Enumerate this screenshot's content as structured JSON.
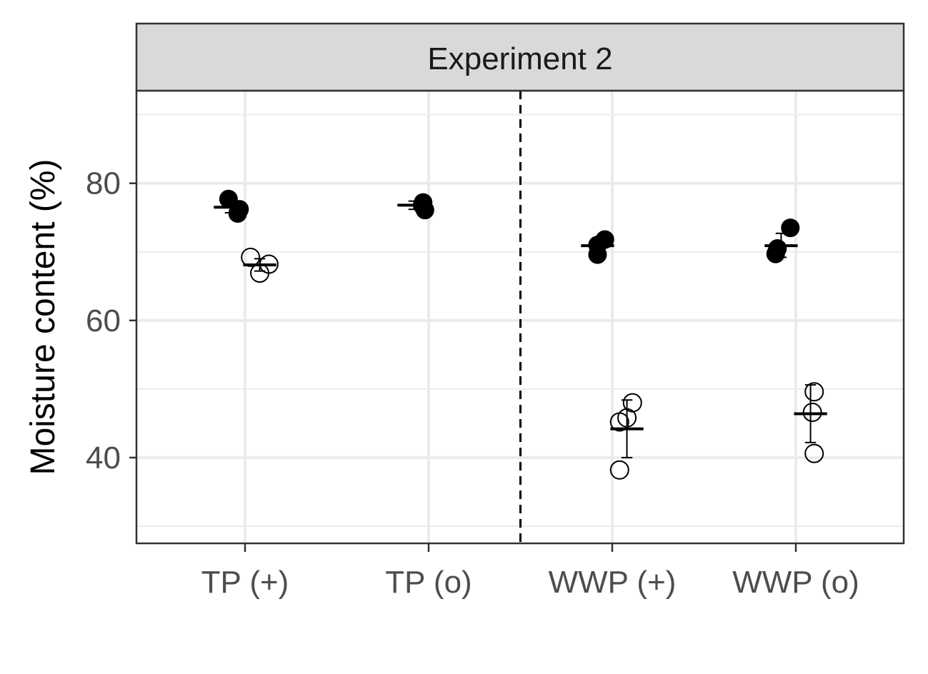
{
  "chart_data": {
    "type": "scatter",
    "facet_title": "Experiment 2",
    "xlabel": "",
    "ylabel": "Moisture content (%)",
    "categories": [
      "TP (+)",
      "TP (o)",
      "WWP (+)",
      "WWP (o)"
    ],
    "ylim": [
      27.5,
      93.5
    ],
    "yticks": [
      40,
      60,
      80
    ],
    "grid": true,
    "separator_after_category": "TP (o)",
    "series": [
      {
        "marker": "filled-circle",
        "color": "#000000",
        "groups": [
          {
            "category": "TP (+)",
            "mean": 76.5,
            "error": [
              75.7,
              77.3
            ],
            "points": [
              {
                "dx": -0.09,
                "y": 77.7
              },
              {
                "dx": -0.04,
                "y": 75.6
              },
              {
                "dx": -0.03,
                "y": 76.2
              }
            ]
          },
          {
            "category": "TP (o)",
            "mean": 76.8,
            "error": [
              76.2,
              77.4
            ],
            "points": [
              {
                "dx": -0.03,
                "y": 77.2
              },
              {
                "dx": -0.02,
                "y": 76.1
              },
              {
                "dx": -0.03,
                "y": 76.6
              }
            ]
          },
          {
            "category": "WWP (+)",
            "mean": 70.9,
            "error": [
              70.0,
              71.8
            ],
            "points": [
              {
                "dx": -0.08,
                "y": 71.0
              },
              {
                "dx": -0.08,
                "y": 69.6
              },
              {
                "dx": -0.04,
                "y": 71.8
              }
            ]
          },
          {
            "category": "WWP (o)",
            "mean": 70.9,
            "error": [
              69.2,
              72.7
            ],
            "points": [
              {
                "dx": -0.11,
                "y": 69.7
              },
              {
                "dx": -0.1,
                "y": 70.5
              },
              {
                "dx": -0.03,
                "y": 73.5
              }
            ]
          }
        ]
      },
      {
        "marker": "open-circle",
        "color": "#000000",
        "groups": [
          {
            "category": "TP (+)",
            "mean": 68.1,
            "error": [
              67.2,
              69.0
            ],
            "points": [
              {
                "dx": 0.03,
                "y": 69.2
              },
              {
                "dx": 0.08,
                "y": 66.9
              },
              {
                "dx": 0.13,
                "y": 68.2
              }
            ]
          },
          {
            "category": "WWP (+)",
            "mean": 44.2,
            "error": [
              40.0,
              48.4
            ],
            "points": [
              {
                "dx": 0.04,
                "y": 38.2
              },
              {
                "dx": 0.04,
                "y": 45.2
              },
              {
                "dx": 0.08,
                "y": 45.8
              },
              {
                "dx": 0.11,
                "y": 48.0
              }
            ]
          },
          {
            "category": "WWP (o)",
            "mean": 46.4,
            "error": [
              42.2,
              50.6
            ],
            "points": [
              {
                "dx": 0.1,
                "y": 40.6
              },
              {
                "dx": 0.09,
                "y": 46.6
              },
              {
                "dx": 0.1,
                "y": 49.6
              }
            ]
          }
        ]
      }
    ]
  }
}
